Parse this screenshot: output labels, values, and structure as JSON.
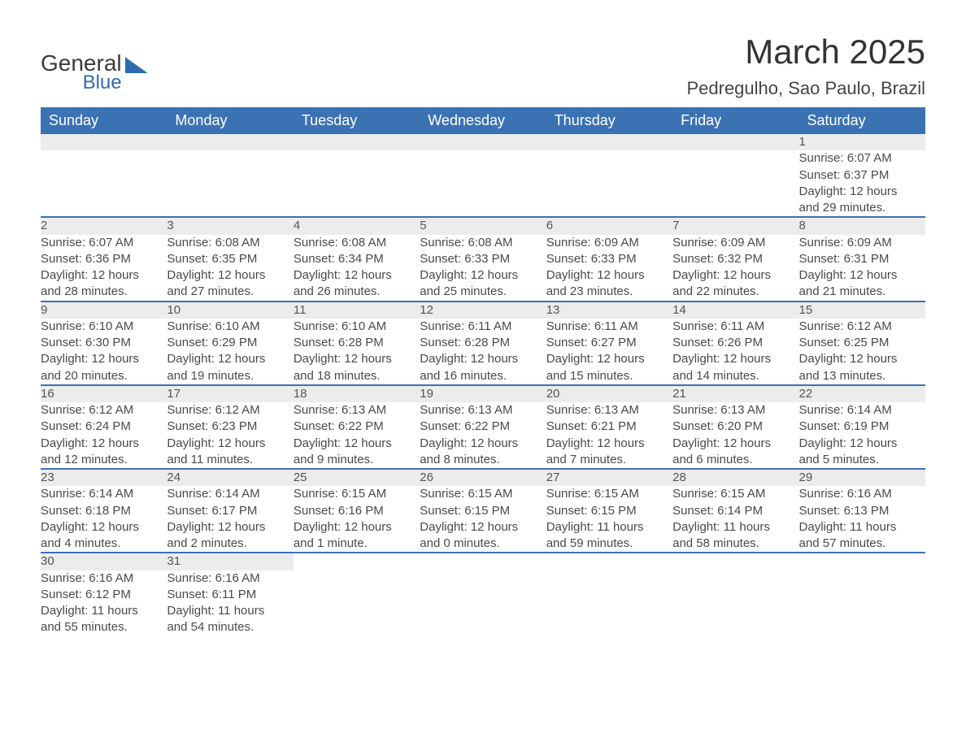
{
  "logo": {
    "line1": "General",
    "line2": "Blue"
  },
  "title": "March 2025",
  "location": "Pedregulho, Sao Paulo, Brazil",
  "colors": {
    "header_bg": "#3b72b4",
    "header_text": "#ffffff",
    "daynum_bg": "#ececec",
    "row_border": "#3b72b4",
    "body_text": "#4a4a4a",
    "logo_accent": "#2d6bb0"
  },
  "typography": {
    "title_fontsize": 42,
    "location_fontsize": 22,
    "header_fontsize": 18,
    "cell_fontsize": 15
  },
  "calendar": {
    "type": "calendar-table",
    "columns": [
      "Sunday",
      "Monday",
      "Tuesday",
      "Wednesday",
      "Thursday",
      "Friday",
      "Saturday"
    ],
    "weeks": [
      [
        null,
        null,
        null,
        null,
        null,
        null,
        {
          "n": "1",
          "sr": "Sunrise: 6:07 AM",
          "ss": "Sunset: 6:37 PM",
          "d1": "Daylight: 12 hours",
          "d2": "and 29 minutes."
        }
      ],
      [
        {
          "n": "2",
          "sr": "Sunrise: 6:07 AM",
          "ss": "Sunset: 6:36 PM",
          "d1": "Daylight: 12 hours",
          "d2": "and 28 minutes."
        },
        {
          "n": "3",
          "sr": "Sunrise: 6:08 AM",
          "ss": "Sunset: 6:35 PM",
          "d1": "Daylight: 12 hours",
          "d2": "and 27 minutes."
        },
        {
          "n": "4",
          "sr": "Sunrise: 6:08 AM",
          "ss": "Sunset: 6:34 PM",
          "d1": "Daylight: 12 hours",
          "d2": "and 26 minutes."
        },
        {
          "n": "5",
          "sr": "Sunrise: 6:08 AM",
          "ss": "Sunset: 6:33 PM",
          "d1": "Daylight: 12 hours",
          "d2": "and 25 minutes."
        },
        {
          "n": "6",
          "sr": "Sunrise: 6:09 AM",
          "ss": "Sunset: 6:33 PM",
          "d1": "Daylight: 12 hours",
          "d2": "and 23 minutes."
        },
        {
          "n": "7",
          "sr": "Sunrise: 6:09 AM",
          "ss": "Sunset: 6:32 PM",
          "d1": "Daylight: 12 hours",
          "d2": "and 22 minutes."
        },
        {
          "n": "8",
          "sr": "Sunrise: 6:09 AM",
          "ss": "Sunset: 6:31 PM",
          "d1": "Daylight: 12 hours",
          "d2": "and 21 minutes."
        }
      ],
      [
        {
          "n": "9",
          "sr": "Sunrise: 6:10 AM",
          "ss": "Sunset: 6:30 PM",
          "d1": "Daylight: 12 hours",
          "d2": "and 20 minutes."
        },
        {
          "n": "10",
          "sr": "Sunrise: 6:10 AM",
          "ss": "Sunset: 6:29 PM",
          "d1": "Daylight: 12 hours",
          "d2": "and 19 minutes."
        },
        {
          "n": "11",
          "sr": "Sunrise: 6:10 AM",
          "ss": "Sunset: 6:28 PM",
          "d1": "Daylight: 12 hours",
          "d2": "and 18 minutes."
        },
        {
          "n": "12",
          "sr": "Sunrise: 6:11 AM",
          "ss": "Sunset: 6:28 PM",
          "d1": "Daylight: 12 hours",
          "d2": "and 16 minutes."
        },
        {
          "n": "13",
          "sr": "Sunrise: 6:11 AM",
          "ss": "Sunset: 6:27 PM",
          "d1": "Daylight: 12 hours",
          "d2": "and 15 minutes."
        },
        {
          "n": "14",
          "sr": "Sunrise: 6:11 AM",
          "ss": "Sunset: 6:26 PM",
          "d1": "Daylight: 12 hours",
          "d2": "and 14 minutes."
        },
        {
          "n": "15",
          "sr": "Sunrise: 6:12 AM",
          "ss": "Sunset: 6:25 PM",
          "d1": "Daylight: 12 hours",
          "d2": "and 13 minutes."
        }
      ],
      [
        {
          "n": "16",
          "sr": "Sunrise: 6:12 AM",
          "ss": "Sunset: 6:24 PM",
          "d1": "Daylight: 12 hours",
          "d2": "and 12 minutes."
        },
        {
          "n": "17",
          "sr": "Sunrise: 6:12 AM",
          "ss": "Sunset: 6:23 PM",
          "d1": "Daylight: 12 hours",
          "d2": "and 11 minutes."
        },
        {
          "n": "18",
          "sr": "Sunrise: 6:13 AM",
          "ss": "Sunset: 6:22 PM",
          "d1": "Daylight: 12 hours",
          "d2": "and 9 minutes."
        },
        {
          "n": "19",
          "sr": "Sunrise: 6:13 AM",
          "ss": "Sunset: 6:22 PM",
          "d1": "Daylight: 12 hours",
          "d2": "and 8 minutes."
        },
        {
          "n": "20",
          "sr": "Sunrise: 6:13 AM",
          "ss": "Sunset: 6:21 PM",
          "d1": "Daylight: 12 hours",
          "d2": "and 7 minutes."
        },
        {
          "n": "21",
          "sr": "Sunrise: 6:13 AM",
          "ss": "Sunset: 6:20 PM",
          "d1": "Daylight: 12 hours",
          "d2": "and 6 minutes."
        },
        {
          "n": "22",
          "sr": "Sunrise: 6:14 AM",
          "ss": "Sunset: 6:19 PM",
          "d1": "Daylight: 12 hours",
          "d2": "and 5 minutes."
        }
      ],
      [
        {
          "n": "23",
          "sr": "Sunrise: 6:14 AM",
          "ss": "Sunset: 6:18 PM",
          "d1": "Daylight: 12 hours",
          "d2": "and 4 minutes."
        },
        {
          "n": "24",
          "sr": "Sunrise: 6:14 AM",
          "ss": "Sunset: 6:17 PM",
          "d1": "Daylight: 12 hours",
          "d2": "and 2 minutes."
        },
        {
          "n": "25",
          "sr": "Sunrise: 6:15 AM",
          "ss": "Sunset: 6:16 PM",
          "d1": "Daylight: 12 hours",
          "d2": "and 1 minute."
        },
        {
          "n": "26",
          "sr": "Sunrise: 6:15 AM",
          "ss": "Sunset: 6:15 PM",
          "d1": "Daylight: 12 hours",
          "d2": "and 0 minutes."
        },
        {
          "n": "27",
          "sr": "Sunrise: 6:15 AM",
          "ss": "Sunset: 6:15 PM",
          "d1": "Daylight: 11 hours",
          "d2": "and 59 minutes."
        },
        {
          "n": "28",
          "sr": "Sunrise: 6:15 AM",
          "ss": "Sunset: 6:14 PM",
          "d1": "Daylight: 11 hours",
          "d2": "and 58 minutes."
        },
        {
          "n": "29",
          "sr": "Sunrise: 6:16 AM",
          "ss": "Sunset: 6:13 PM",
          "d1": "Daylight: 11 hours",
          "d2": "and 57 minutes."
        }
      ],
      [
        {
          "n": "30",
          "sr": "Sunrise: 6:16 AM",
          "ss": "Sunset: 6:12 PM",
          "d1": "Daylight: 11 hours",
          "d2": "and 55 minutes."
        },
        {
          "n": "31",
          "sr": "Sunrise: 6:16 AM",
          "ss": "Sunset: 6:11 PM",
          "d1": "Daylight: 11 hours",
          "d2": "and 54 minutes."
        },
        null,
        null,
        null,
        null,
        null
      ]
    ]
  }
}
